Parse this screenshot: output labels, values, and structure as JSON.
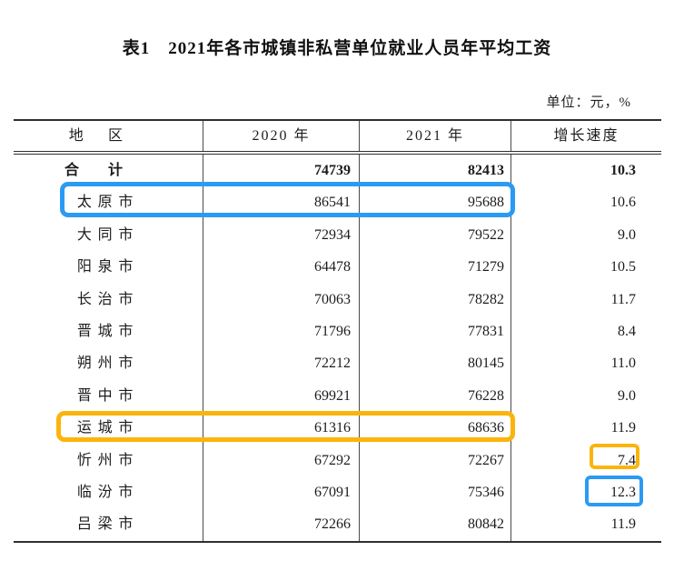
{
  "title": "表1　2021年各市城镇非私营单位就业人员年平均工资",
  "unit_note": "单位：元，%",
  "table": {
    "columns": [
      "地区",
      "2020 年",
      "2021 年",
      "增长速度"
    ],
    "rows": [
      {
        "region": "合计",
        "y2020": "74739",
        "y2021": "82413",
        "growth": "10.3"
      },
      {
        "region": "太原市",
        "y2020": "86541",
        "y2021": "95688",
        "growth": "10.6"
      },
      {
        "region": "大同市",
        "y2020": "72934",
        "y2021": "79522",
        "growth": "9.0"
      },
      {
        "region": "阳泉市",
        "y2020": "64478",
        "y2021": "71279",
        "growth": "10.5"
      },
      {
        "region": "长治市",
        "y2020": "70063",
        "y2021": "78282",
        "growth": "11.7"
      },
      {
        "region": "晋城市",
        "y2020": "71796",
        "y2021": "77831",
        "growth": "8.4"
      },
      {
        "region": "朔州市",
        "y2020": "72212",
        "y2021": "80145",
        "growth": "11.0"
      },
      {
        "region": "晋中市",
        "y2020": "69921",
        "y2021": "76228",
        "growth": "9.0"
      },
      {
        "region": "运城市",
        "y2020": "61316",
        "y2021": "68636",
        "growth": "11.9"
      },
      {
        "region": "忻州市",
        "y2020": "67292",
        "y2021": "72267",
        "growth": "7.4"
      },
      {
        "region": "临汾市",
        "y2020": "67091",
        "y2021": "75346",
        "growth": "12.3"
      },
      {
        "region": "吕梁市",
        "y2020": "72266",
        "y2021": "80842",
        "growth": "11.9"
      }
    ]
  },
  "annotations": {
    "blue_color": "#2b9af3",
    "orange_color": "#fbb40b",
    "boxes": [
      {
        "name": "taiyuan-row-highlight",
        "color": "blue",
        "covers": "太原市 86541 95688"
      },
      {
        "name": "yuncheng-row-highlight",
        "color": "orange",
        "covers": "运城市 61316 68636"
      },
      {
        "name": "xinzhou-growth-highlight",
        "color": "orange",
        "covers": "7.4"
      },
      {
        "name": "linfen-growth-highlight",
        "color": "blue",
        "covers": "12.3"
      }
    ]
  },
  "chart_data": {
    "type": "table",
    "title": "表1　2021年各市城镇非私营单位就业人员年平均工资",
    "unit": "元，%",
    "columns": [
      "地区",
      "2020 年",
      "2021 年",
      "增长速度"
    ],
    "categories": [
      "合计",
      "太原市",
      "大同市",
      "阳泉市",
      "长治市",
      "晋城市",
      "朔州市",
      "晋中市",
      "运城市",
      "忻州市",
      "临汾市",
      "吕梁市"
    ],
    "series": [
      {
        "name": "2020 年",
        "values": [
          74739,
          86541,
          72934,
          64478,
          70063,
          71796,
          72212,
          69921,
          61316,
          67292,
          67091,
          72266
        ]
      },
      {
        "name": "2021 年",
        "values": [
          82413,
          95688,
          79522,
          71279,
          78282,
          77831,
          80145,
          76228,
          68636,
          72267,
          75346,
          80842
        ]
      },
      {
        "name": "增长速度",
        "values": [
          10.3,
          10.6,
          9.0,
          10.5,
          11.7,
          8.4,
          11.0,
          9.0,
          11.9,
          7.4,
          12.3,
          11.9
        ]
      }
    ]
  }
}
